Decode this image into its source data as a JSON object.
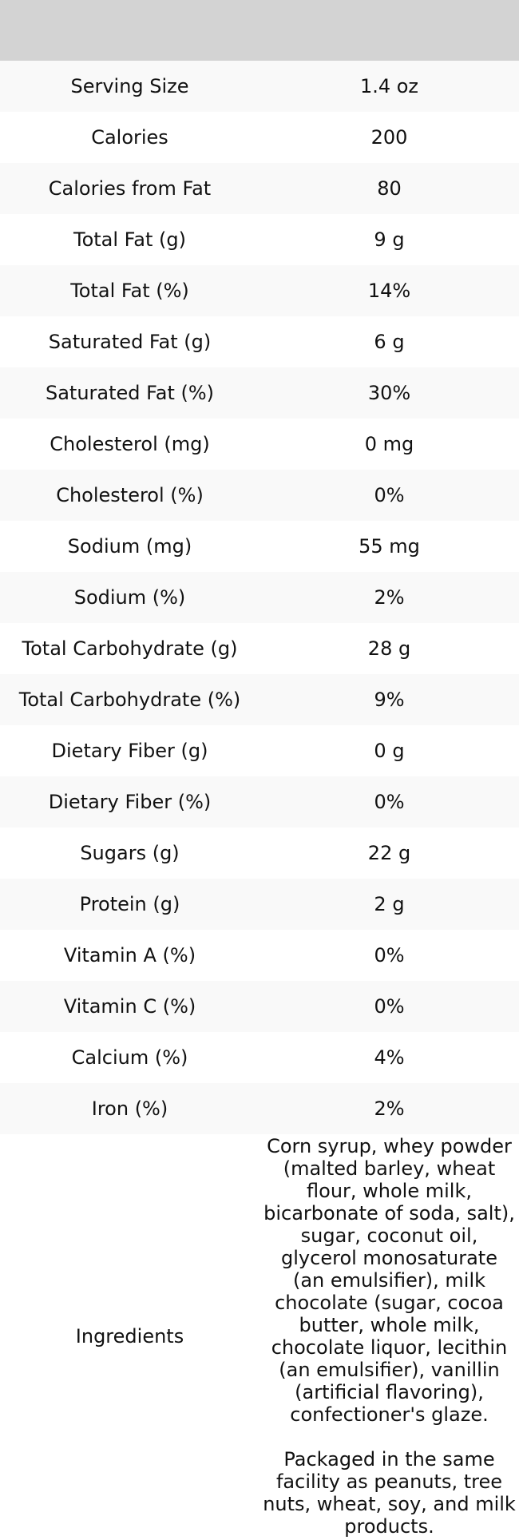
{
  "table": {
    "rows": [
      [
        "Serving Size",
        "1.4 oz"
      ],
      [
        "Calories",
        "200"
      ],
      [
        "Calories from Fat",
        "80"
      ],
      [
        "Total Fat (g)",
        "9 g"
      ],
      [
        "Total Fat (%)",
        "14%"
      ],
      [
        "Saturated Fat (g)",
        "6 g"
      ],
      [
        "Saturated Fat (%)",
        "30%"
      ],
      [
        "Cholesterol (mg)",
        "0 mg"
      ],
      [
        "Cholesterol (%)",
        "0%"
      ],
      [
        "Sodium (mg)",
        "55 mg"
      ],
      [
        "Sodium (%)",
        "2%"
      ],
      [
        "Total Carbohydrate (g)",
        "28 g"
      ],
      [
        "Total Carbohydrate (%)",
        "9%"
      ],
      [
        "Dietary Fiber (g)",
        "0 g"
      ],
      [
        "Dietary Fiber (%)",
        "0%"
      ],
      [
        "Sugars (g)",
        "22 g"
      ],
      [
        "Protein (g)",
        "2 g"
      ],
      [
        "Vitamin A (%)",
        "0%"
      ],
      [
        "Vitamin C (%)",
        "0%"
      ],
      [
        "Calcium (%)",
        "4%"
      ],
      [
        "Iron (%)",
        "2%"
      ],
      [
        "Ingredients",
        "Corn syrup, whey powder (malted barley, wheat flour, whole milk, bicarbonate of soda, salt), sugar, coconut oil, glycerol monosaturate (an emulsifier), milk chocolate (sugar, cocoa butter, whole milk, chocolate liquor, lecithin (an emulsifier), vanillin (artificial flavoring), confectioner's glaze.\n\nPackaged in the same facility as peanuts, tree nuts, wheat, soy, and milk products."
      ]
    ]
  }
}
